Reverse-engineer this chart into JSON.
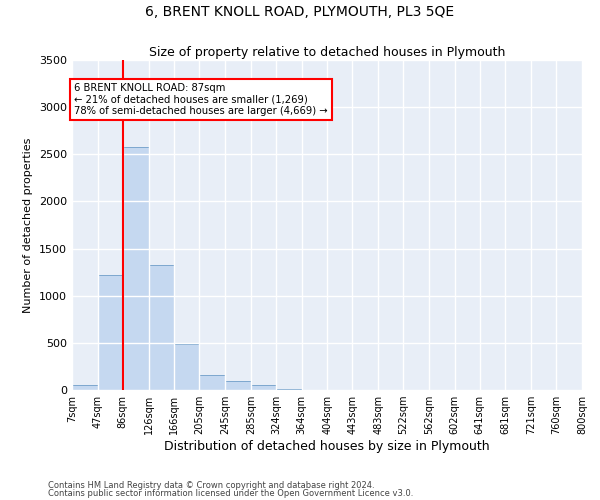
{
  "title": "6, BRENT KNOLL ROAD, PLYMOUTH, PL3 5QE",
  "subtitle": "Size of property relative to detached houses in Plymouth",
  "xlabel": "Distribution of detached houses by size in Plymouth",
  "ylabel": "Number of detached properties",
  "bar_color": "#c5d8f0",
  "bar_edge_color": "#5a8fc0",
  "background_color": "#e8eef7",
  "grid_color": "#ffffff",
  "red_line_x": 87,
  "annotation_text": "6 BRENT KNOLL ROAD: 87sqm\n← 21% of detached houses are smaller (1,269)\n78% of semi-detached houses are larger (4,669) →",
  "footer_line1": "Contains HM Land Registry data © Crown copyright and database right 2024.",
  "footer_line2": "Contains public sector information licensed under the Open Government Licence v3.0.",
  "bins": [
    7,
    47,
    86,
    126,
    166,
    205,
    245,
    285,
    324,
    364,
    404,
    443,
    483,
    522,
    562,
    602,
    641,
    681,
    721,
    760,
    800
  ],
  "bin_labels": [
    "7sqm",
    "47sqm",
    "86sqm",
    "126sqm",
    "166sqm",
    "205sqm",
    "245sqm",
    "285sqm",
    "324sqm",
    "364sqm",
    "404sqm",
    "443sqm",
    "483sqm",
    "522sqm",
    "562sqm",
    "602sqm",
    "641sqm",
    "681sqm",
    "721sqm",
    "760sqm",
    "800sqm"
  ],
  "counts": [
    50,
    1220,
    2580,
    1330,
    490,
    155,
    100,
    50,
    10,
    5,
    3,
    2,
    1,
    0,
    0,
    0,
    0,
    0,
    0,
    0
  ],
  "ylim": [
    0,
    3500
  ],
  "yticks": [
    0,
    500,
    1000,
    1500,
    2000,
    2500,
    3000,
    3500
  ]
}
